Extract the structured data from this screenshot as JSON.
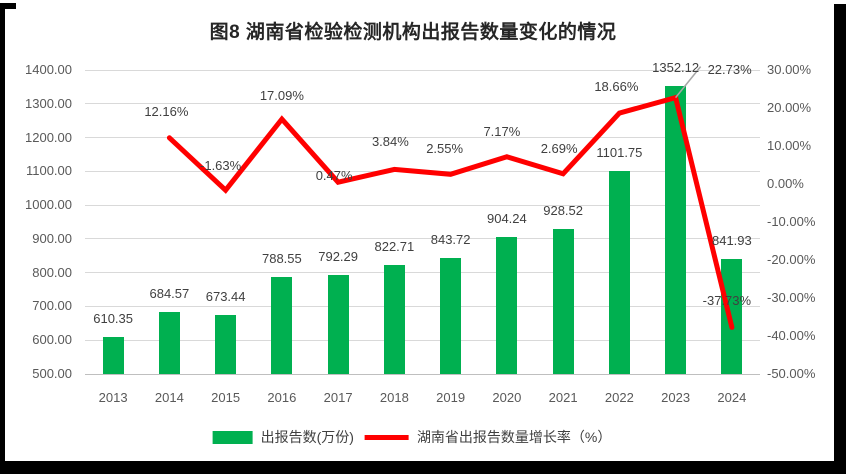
{
  "chart_data": {
    "type": "combo-bar-line",
    "title": "图8  湖南省检验检测机构出报告数量变化的情况",
    "categories": [
      "2013",
      "2014",
      "2015",
      "2016",
      "2017",
      "2018",
      "2019",
      "2020",
      "2021",
      "2022",
      "2023",
      "2024"
    ],
    "series": [
      {
        "name": "出报告数(万份)",
        "type": "bar",
        "axis": "left",
        "color": "#00B050",
        "values": [
          610.35,
          684.57,
          673.44,
          788.55,
          792.29,
          822.71,
          843.72,
          904.24,
          928.52,
          1101.75,
          1352.12,
          841.93
        ],
        "labels": [
          "610.35",
          "684.57",
          "673.44",
          "788.55",
          "792.29",
          "822.71",
          "843.72",
          "904.24",
          "928.52",
          "1101.75",
          "1352.12",
          "841.93"
        ]
      },
      {
        "name": "湖南省出报告数量增长率（%）",
        "type": "line",
        "axis": "right",
        "color": "#FF0000",
        "values": [
          null,
          12.16,
          -1.63,
          17.09,
          0.47,
          3.84,
          2.55,
          7.17,
          2.69,
          18.66,
          22.73,
          -37.73
        ],
        "labels": [
          null,
          "12.16%",
          "-1.63%",
          "17.09%",
          "0.47%",
          "3.84%",
          "2.55%",
          "7.17%",
          "2.69%",
          "18.66%",
          "22.73%",
          "-37.73%"
        ]
      }
    ],
    "left_axis": {
      "min": 500,
      "max": 1400,
      "step": 100,
      "ticks": [
        "1400.00",
        "1300.00",
        "1200.00",
        "1100.00",
        "1000.00",
        "900.00",
        "800.00",
        "700.00",
        "600.00",
        "500.00"
      ]
    },
    "right_axis": {
      "min": -50,
      "max": 30,
      "step": 10,
      "ticks": [
        "30.00%",
        "20.00%",
        "10.00%",
        "0.00%",
        "-10.00%",
        "-20.00%",
        "-30.00%",
        "-40.00%",
        "-50.00%"
      ]
    },
    "grid": true,
    "legend_position": "bottom",
    "gridline_color": "#D9D9D9",
    "baseline_color": "#BFBFBF",
    "tick_color": "#595959",
    "label_color": "#404040",
    "leader_line_color": "#A6A6A6"
  }
}
